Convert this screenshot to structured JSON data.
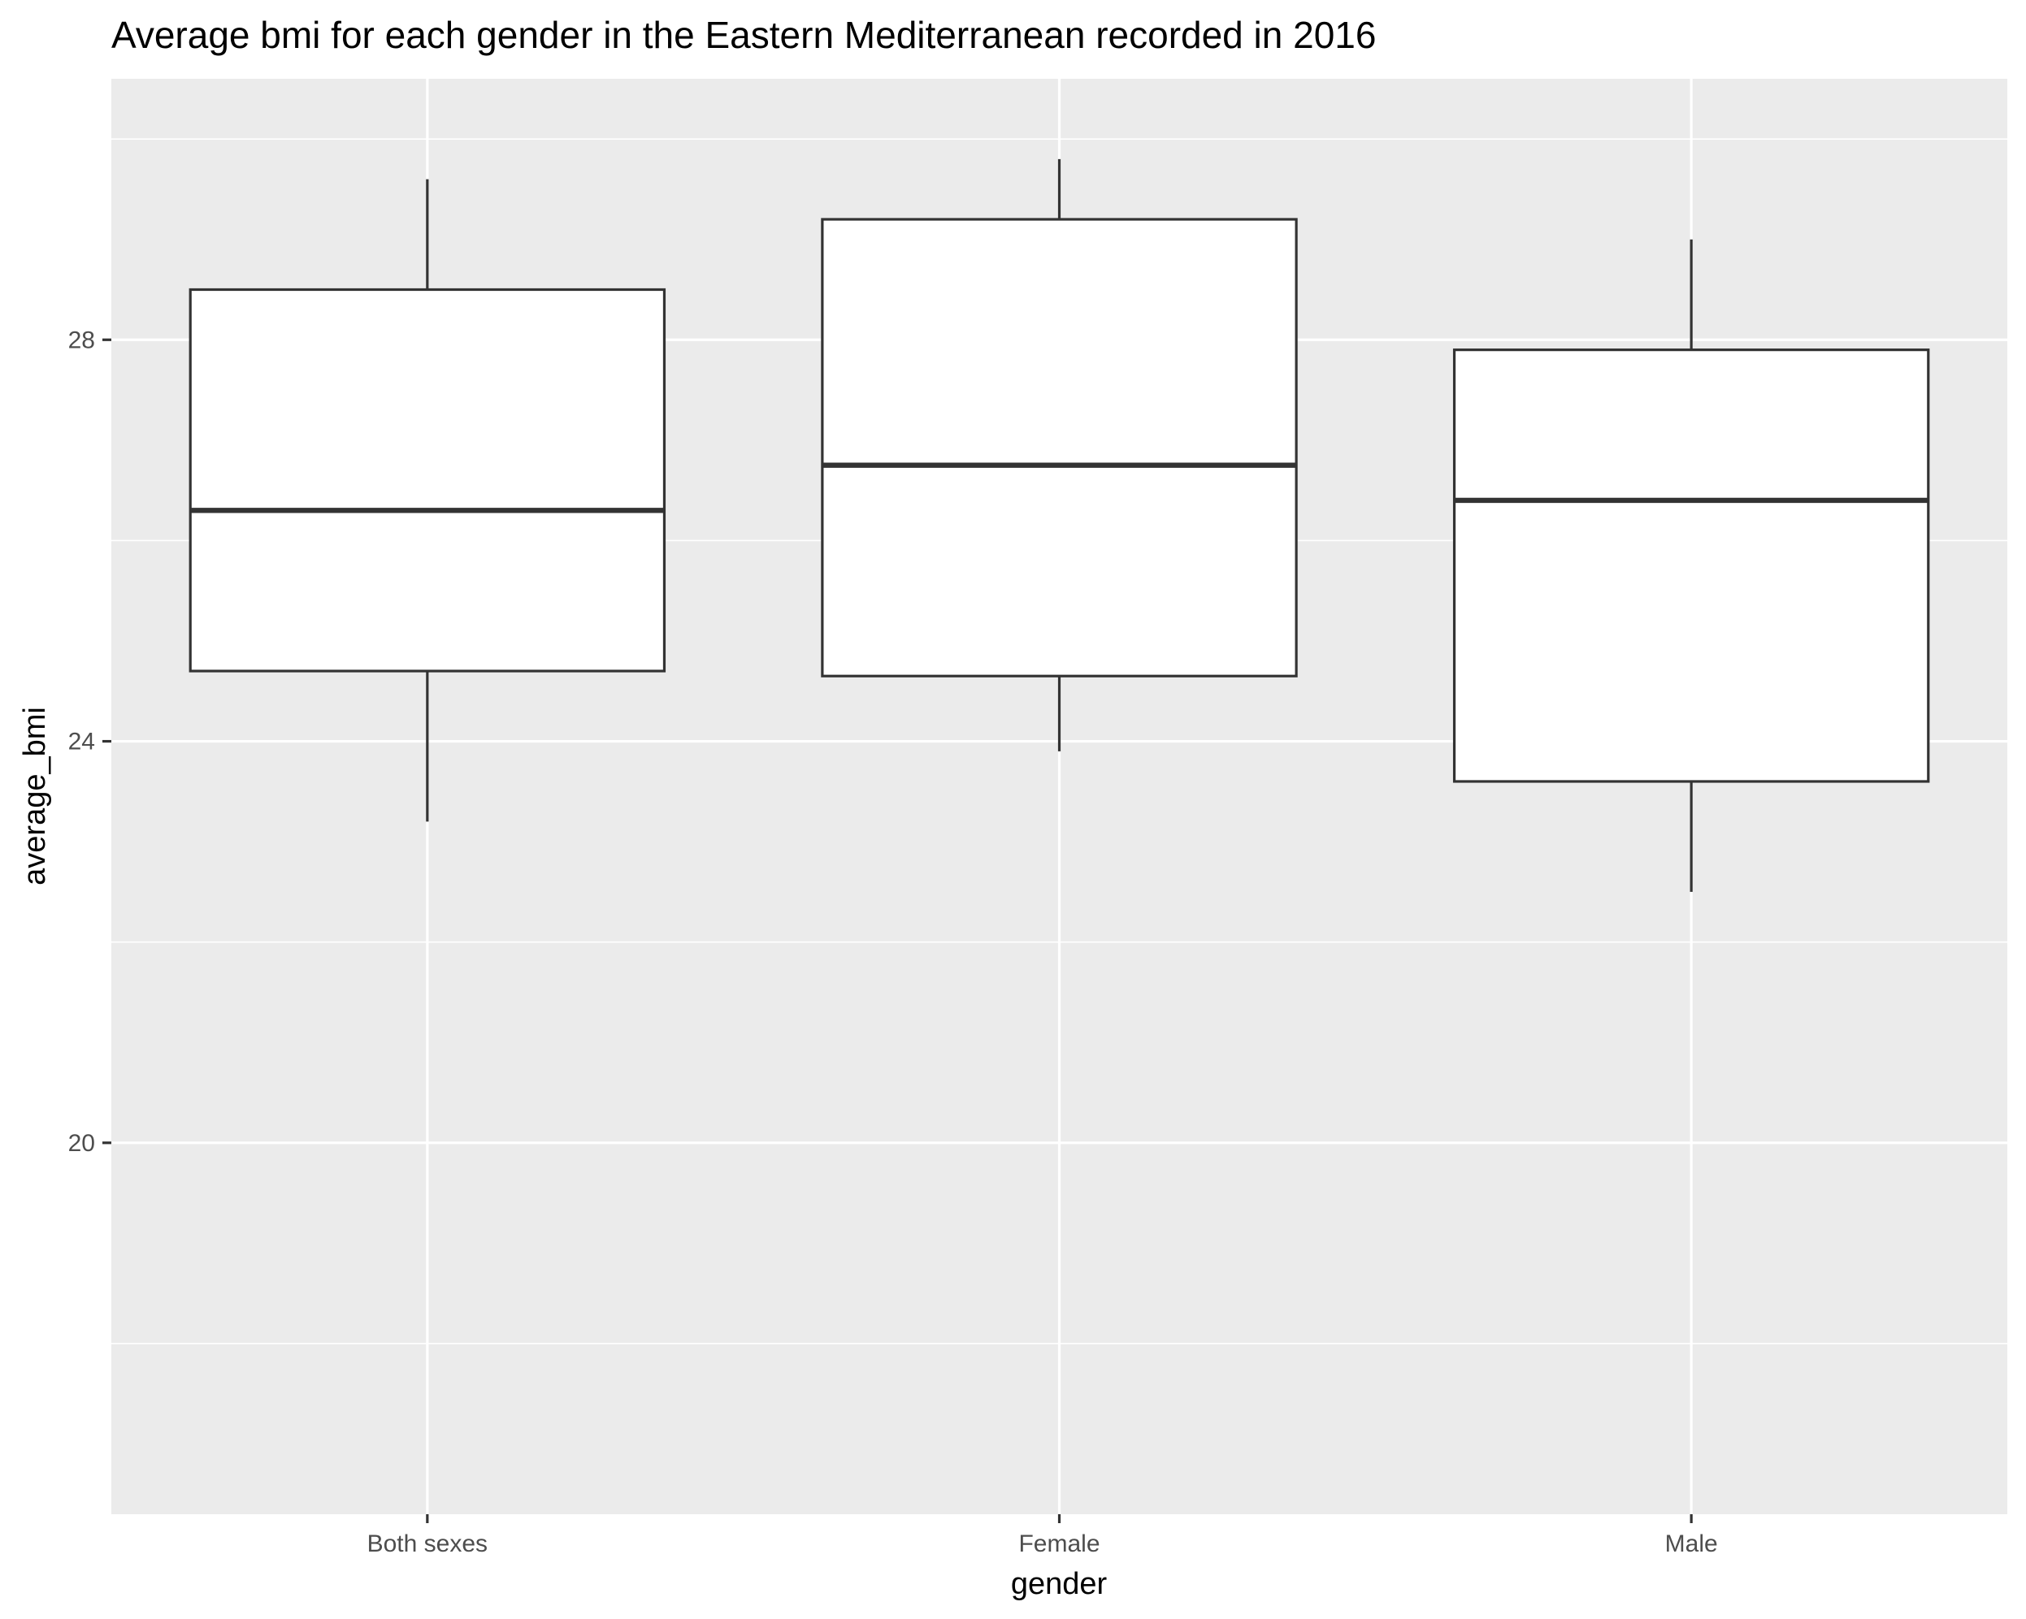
{
  "chart_data": {
    "type": "boxplot",
    "title": "Average bmi for each gender in the Eastern Mediterranean recorded in 2016",
    "xlabel": "gender",
    "ylabel": "average_bmi",
    "categories": [
      "Both sexes",
      "Female",
      "Male"
    ],
    "boxes": [
      {
        "category": "Both sexes",
        "min": 23.2,
        "q1": 24.7,
        "median": 26.3,
        "q3": 28.5,
        "max": 29.6
      },
      {
        "category": "Female",
        "min": 23.9,
        "q1": 24.65,
        "median": 26.75,
        "q3": 29.2,
        "max": 29.8
      },
      {
        "category": "Male",
        "min": 22.5,
        "q1": 23.6,
        "median": 26.4,
        "q3": 27.9,
        "max": 29.0
      }
    ],
    "ylim": [
      16.3,
      30.6
    ],
    "yticks": [
      20,
      24,
      28
    ],
    "ytick_labels": [
      "20",
      "24",
      "28"
    ],
    "y_minor_gridlines": [
      18,
      22,
      26,
      30
    ],
    "grid": true,
    "colors": {
      "panel_background": "#ebebeb",
      "grid": "#ffffff",
      "box_fill": "#ffffff",
      "box_line": "#333333",
      "tick_text": "#4d4d4d",
      "text": "#000000"
    }
  }
}
